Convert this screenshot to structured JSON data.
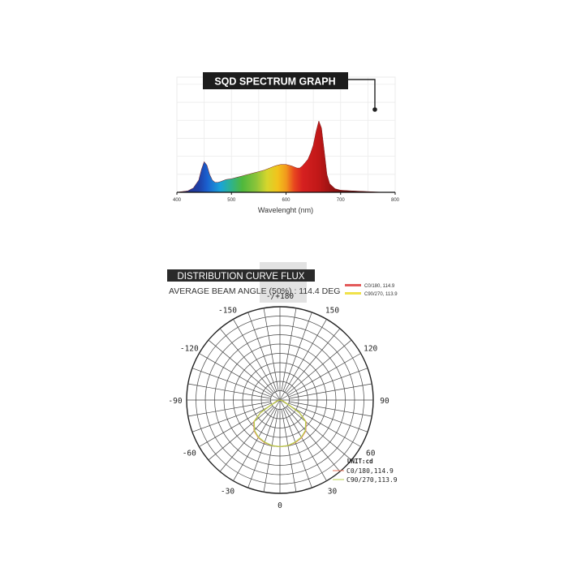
{
  "chart_data": [
    {
      "type": "area",
      "title": "SQD SPECTRUM GRAPH",
      "xlabel": "Wavelenght (nm)",
      "ylabel": "",
      "xlim": [
        400,
        800
      ],
      "x_ticks": [
        "400",
        "500",
        "600",
        "700",
        "800"
      ],
      "grid": true,
      "colormap": "visible-spectrum",
      "series": [
        {
          "x": [
            400,
            410,
            420,
            430,
            440,
            445,
            450,
            455,
            460,
            465,
            470,
            475,
            480,
            490,
            500,
            510,
            520,
            530,
            540,
            550,
            560,
            570,
            580,
            590,
            600,
            610,
            620,
            625,
            630,
            640,
            645,
            650,
            655,
            660,
            665,
            670,
            675,
            680,
            690,
            700,
            720,
            750,
            780,
            800
          ],
          "values": [
            0.0,
            0.01,
            0.02,
            0.06,
            0.17,
            0.32,
            0.43,
            0.38,
            0.25,
            0.17,
            0.14,
            0.14,
            0.15,
            0.18,
            0.19,
            0.21,
            0.23,
            0.25,
            0.27,
            0.29,
            0.31,
            0.34,
            0.37,
            0.39,
            0.39,
            0.37,
            0.34,
            0.34,
            0.37,
            0.46,
            0.55,
            0.66,
            0.85,
            1.0,
            0.9,
            0.58,
            0.25,
            0.12,
            0.05,
            0.03,
            0.02,
            0.01,
            0.0,
            0.0
          ]
        }
      ]
    },
    {
      "type": "polar",
      "title": "DISTRIBUTION CURVE FLUX",
      "subtitle": "AVERAGE BEAM ANGLE (50%) : 114.4 DEG",
      "unit": "UNIT:cd",
      "angle_labels": [
        "-/+180",
        "150",
        "120",
        "90",
        "60",
        "30",
        "0",
        "-30",
        "-60",
        "-90",
        "-120",
        "-150"
      ],
      "legend_top": [
        "C0/180, 114.9",
        "C90/270, 113.9"
      ],
      "legend_bottom": [
        "C0/180,114.9",
        "C90/270,113.9"
      ],
      "series": [
        {
          "name": "C0/180, 114.9",
          "color": "#e8735a",
          "angles_deg": [
            -90,
            -75,
            -60,
            -57,
            -50,
            -40,
            -30,
            -20,
            -10,
            0,
            10,
            20,
            30,
            40,
            50,
            57,
            60,
            75,
            90
          ],
          "values": [
            0,
            0.06,
            0.28,
            0.5,
            0.73,
            0.86,
            0.93,
            0.97,
            0.99,
            1.0,
            0.99,
            0.97,
            0.93,
            0.86,
            0.73,
            0.5,
            0.28,
            0.06,
            0
          ]
        },
        {
          "name": "C90/270, 113.9",
          "color": "#b9cf4e",
          "angles_deg": [
            -90,
            -75,
            -60,
            -57,
            -50,
            -40,
            -30,
            -20,
            -10,
            0,
            10,
            20,
            30,
            40,
            50,
            57,
            60,
            75,
            90
          ],
          "values": [
            0,
            0.05,
            0.27,
            0.5,
            0.72,
            0.85,
            0.92,
            0.96,
            0.99,
            1.0,
            0.99,
            0.96,
            0.92,
            0.85,
            0.72,
            0.5,
            0.27,
            0.05,
            0
          ]
        }
      ]
    }
  ],
  "colors": {
    "c0": "#e8735a",
    "c90": "#b9cf4e",
    "legend_c0": "#e35a5a",
    "legend_c90": "#f0e24a",
    "title_bg": "#1c1c1c"
  }
}
